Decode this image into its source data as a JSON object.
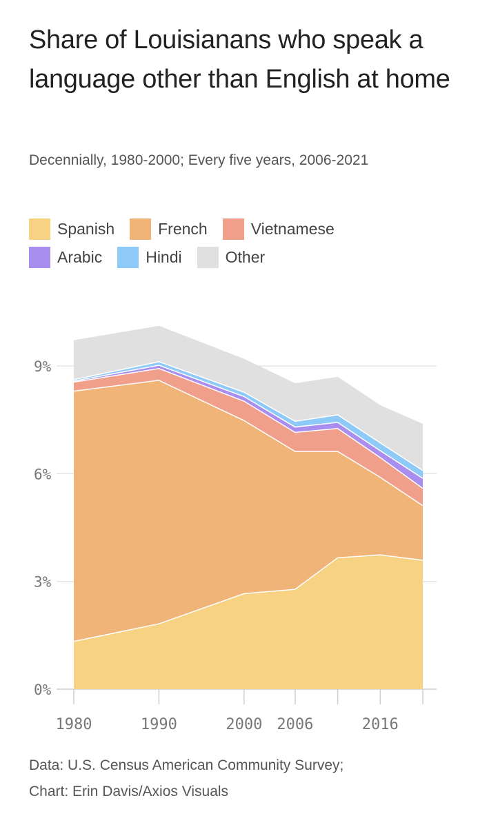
{
  "title": "Share of Louisianans who speak a language other than English at home",
  "subtitle": "Decennially, 1980-2000; Every five years, 2006-2021",
  "footer": {
    "source": "Data: U.S. Census American Community Survey;",
    "credit": "Chart: Erin Davis/Axios Visuals"
  },
  "chart_data": {
    "type": "area",
    "stacked": true,
    "x": [
      1980,
      1990,
      2000,
      2006,
      2011,
      2016,
      2021
    ],
    "xticks": [
      1980,
      1990,
      2000,
      2006,
      2016
    ],
    "ylim": [
      0,
      10.5
    ],
    "yticks": [
      0,
      3,
      6,
      9
    ],
    "ytick_labels": [
      "0%",
      "3%",
      "6%",
      "9%"
    ],
    "series": [
      {
        "name": "Spanish",
        "color": "#f6d282",
        "values": [
          1.33,
          1.82,
          2.66,
          2.78,
          3.66,
          3.74,
          3.59
        ]
      },
      {
        "name": "French",
        "color": "#f0b478",
        "values": [
          6.97,
          6.78,
          4.82,
          3.84,
          2.96,
          2.16,
          1.52
        ]
      },
      {
        "name": "Vietnamese",
        "color": "#f0a08a",
        "values": [
          0.25,
          0.33,
          0.54,
          0.53,
          0.64,
          0.55,
          0.48
        ]
      },
      {
        "name": "Arabic",
        "color": "#a98ef0",
        "values": [
          0.03,
          0.09,
          0.13,
          0.15,
          0.17,
          0.19,
          0.28
        ]
      },
      {
        "name": "Hindi",
        "color": "#8ecaf7",
        "values": [
          0.04,
          0.1,
          0.12,
          0.16,
          0.21,
          0.22,
          0.22
        ]
      },
      {
        "name": "Other",
        "color": "#e0e0e0",
        "values": [
          1.1,
          1.0,
          0.93,
          1.06,
          1.06,
          1.05,
          1.3
        ]
      }
    ]
  }
}
